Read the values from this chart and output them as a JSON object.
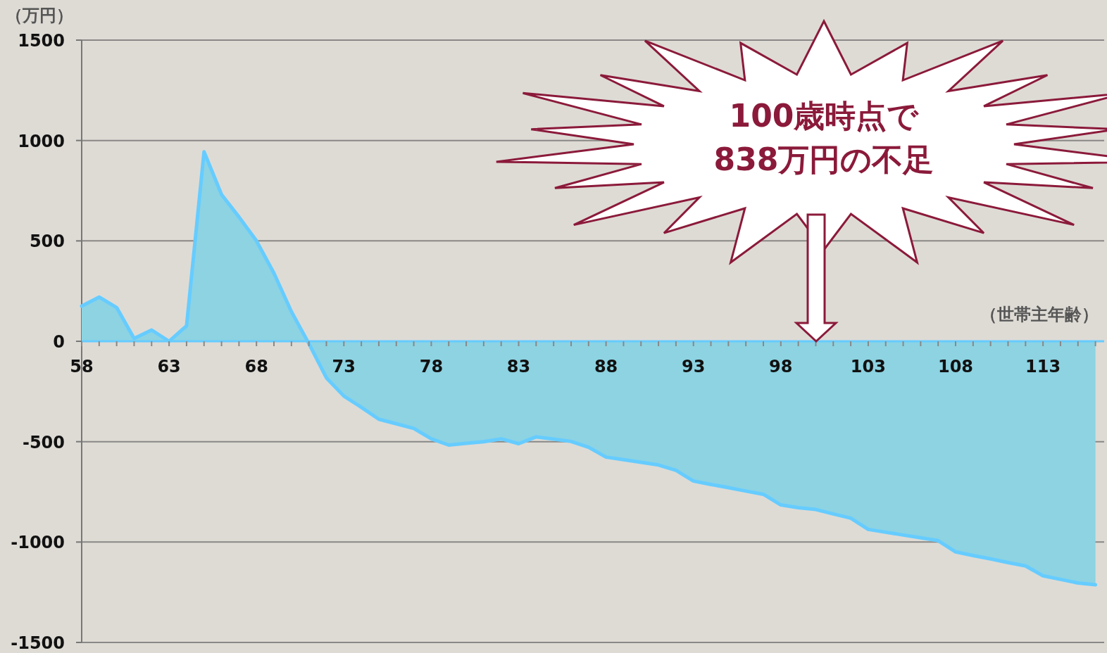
{
  "chart_data": {
    "type": "area",
    "ylabel": "（万円）",
    "xlabel": "（世帯主年齢）",
    "x": [
      58,
      59,
      60,
      61,
      62,
      63,
      64,
      65,
      66,
      67,
      68,
      69,
      70,
      71,
      72,
      73,
      74,
      75,
      76,
      77,
      78,
      79,
      80,
      81,
      82,
      83,
      84,
      85,
      86,
      87,
      88,
      89,
      90,
      91,
      92,
      93,
      94,
      95,
      96,
      97,
      98,
      99,
      100,
      101,
      102,
      103,
      104,
      105,
      106,
      107,
      108,
      109,
      110,
      111,
      112,
      113,
      114,
      115,
      116
    ],
    "series": [
      {
        "color": "#66ccff",
        "values": [
          175,
          220,
          168,
          14,
          56,
          0,
          77,
          944,
          731,
          619,
          500,
          339,
          147,
          -12,
          -182,
          -273,
          -329,
          -388,
          -411,
          -434,
          -486,
          -517,
          -508,
          -500,
          -486,
          -510,
          -476,
          -487,
          -499,
          -528,
          -577,
          -590,
          -603,
          -616,
          -643,
          -696,
          -713,
          -729,
          -746,
          -762,
          -815,
          -829,
          -838,
          -860,
          -881,
          -937,
          -951,
          -965,
          -979,
          -993,
          -1049,
          -1067,
          -1084,
          -1102,
          -1119,
          -1168,
          -1186,
          -1204,
          -1213
        ]
      }
    ],
    "xlim": [
      58,
      116.5
    ],
    "ylim": [
      -1500,
      1500
    ],
    "yticks": [
      -1500,
      -1000,
      -500,
      0,
      500,
      1000,
      1500
    ],
    "xticks": [
      58,
      {
        "value": 59,
        "label": null
      },
      {
        "value": 60,
        "label": null
      },
      {
        "value": 61,
        "label": null
      },
      {
        "value": 62,
        "label": null
      },
      63,
      {
        "value": 64,
        "label": null
      },
      {
        "value": 65,
        "label": null
      },
      {
        "value": 66,
        "label": null
      },
      {
        "value": 67,
        "label": null
      },
      68,
      {
        "value": 69,
        "label": null
      },
      {
        "value": 70,
        "label": null
      },
      {
        "value": 71,
        "label": null
      },
      {
        "value": 72,
        "label": null
      },
      73,
      {
        "value": 74,
        "label": null
      },
      {
        "value": 75,
        "label": null
      },
      {
        "value": 76,
        "label": null
      },
      {
        "value": 77,
        "label": null
      },
      78,
      {
        "value": 79,
        "label": null
      },
      {
        "value": 80,
        "label": null
      },
      {
        "value": 81,
        "label": null
      },
      {
        "value": 82,
        "label": null
      },
      83,
      {
        "value": 84,
        "label": null
      },
      {
        "value": 85,
        "label": null
      },
      {
        "value": 86,
        "label": null
      },
      {
        "value": 87,
        "label": null
      },
      88,
      {
        "value": 89,
        "label": null
      },
      {
        "value": 90,
        "label": null
      },
      {
        "value": 91,
        "label": null
      },
      {
        "value": 92,
        "label": null
      },
      93,
      {
        "value": 94,
        "label": null
      },
      {
        "value": 95,
        "label": null
      },
      {
        "value": 96,
        "label": null
      },
      {
        "value": 97,
        "label": null
      },
      98,
      {
        "value": 99,
        "label": null
      },
      {
        "value": 100,
        "label": null
      },
      {
        "value": 101,
        "label": null
      },
      {
        "value": 102,
        "label": null
      },
      103,
      {
        "value": 104,
        "label": null
      },
      {
        "value": 105,
        "label": null
      },
      {
        "value": 106,
        "label": null
      },
      {
        "value": 107,
        "label": null
      },
      108,
      {
        "value": 109,
        "label": null
      },
      {
        "value": 110,
        "label": null
      },
      {
        "value": 111,
        "label": null
      },
      {
        "value": 112,
        "label": null
      },
      113,
      {
        "value": 114,
        "label": null
      },
      {
        "value": 115,
        "label": null
      },
      {
        "value": 116,
        "label": null
      }
    ],
    "grid": "y",
    "marker": "none",
    "annotations": [
      "100歳時点で\n838万円の不足"
    ]
  }
}
